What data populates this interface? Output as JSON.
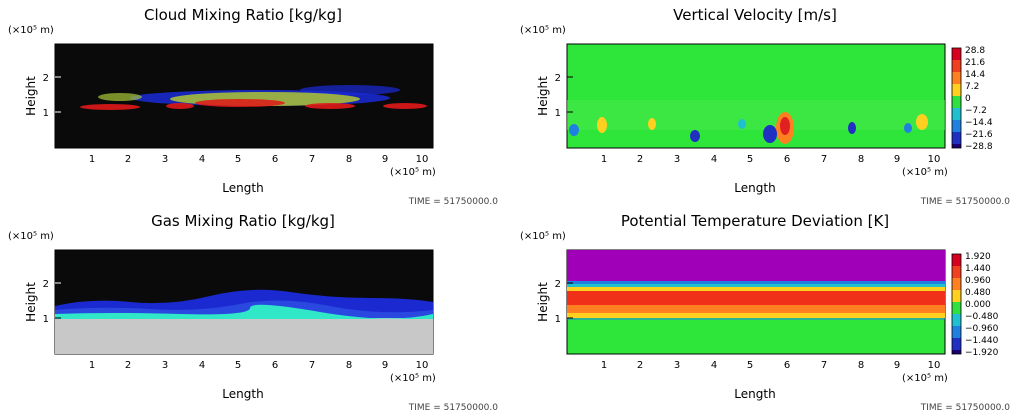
{
  "chart_data": [
    {
      "type": "heatmap",
      "title": "Cloud Mixing Ratio [kg/kg]",
      "xlabel": "Length",
      "ylabel": "Height",
      "x_unit": "(×10⁵ m)",
      "y_unit": "(×10⁵ m)",
      "x_ticks": [
        "1",
        "2",
        "3",
        "4",
        "5",
        "6",
        "7",
        "8",
        "9",
        "10"
      ],
      "y_ticks": [
        "1",
        "2"
      ],
      "xlim": [
        0,
        10.3
      ],
      "ylim": [
        0,
        2.8
      ],
      "time_label": "TIME = 51750000.0",
      "background": "#0a0a0a",
      "features": [
        {
          "name": "lower cloud layer",
          "color": "#e01818",
          "x": [
            0.7,
            10.3
          ],
          "y": [
            1.0,
            1.3
          ]
        },
        {
          "name": "mixed layer",
          "color": "#b8d028",
          "x": [
            1.0,
            9.0
          ],
          "y": [
            1.2,
            1.6
          ]
        },
        {
          "name": "upper layer",
          "color": "#1a2ad8",
          "x": [
            2.8,
            9.8
          ],
          "y": [
            1.5,
            1.95
          ]
        }
      ]
    },
    {
      "type": "heatmap",
      "title": "Vertical Velocity [m/s]",
      "xlabel": "Length",
      "ylabel": "Height",
      "x_unit": "(×10⁵ m)",
      "y_unit": "(×10⁵ m)",
      "x_ticks": [
        "1",
        "2",
        "3",
        "4",
        "5",
        "6",
        "7",
        "8",
        "9",
        "10"
      ],
      "y_ticks": [
        "1",
        "2"
      ],
      "xlim": [
        0,
        10.3
      ],
      "ylim": [
        0,
        2.8
      ],
      "time_label": "TIME = 51750000.0",
      "background": "#2ee63a",
      "colorbar": {
        "labels": [
          "28.8",
          "21.6",
          "14.4",
          "7.2",
          "0",
          "−7.2",
          "−14.4",
          "−21.6",
          "−28.8"
        ],
        "colors": [
          "#d80020",
          "#f04020",
          "#ff8020",
          "#ffd020",
          "#30e040",
          "#20c0d0",
          "#2080e0",
          "#2030c0",
          "#1a0070"
        ]
      },
      "features": [
        {
          "name": "updraft",
          "color": "#ff8020",
          "x": 6.0,
          "y": 0.65
        },
        {
          "name": "downdraft",
          "color": "#2030c0",
          "x": 5.6,
          "y": 0.45
        },
        {
          "name": "downdraft",
          "color": "#2030c0",
          "x": 3.4,
          "y": 0.45
        }
      ]
    },
    {
      "type": "heatmap",
      "title": "Gas Mixing Ratio [kg/kg]",
      "xlabel": "Length",
      "ylabel": "Height",
      "x_unit": "(×10⁵ m)",
      "y_unit": "(×10⁵ m)",
      "x_ticks": [
        "1",
        "2",
        "3",
        "4",
        "5",
        "6",
        "7",
        "8",
        "9",
        "10"
      ],
      "y_ticks": [
        "1",
        "2"
      ],
      "xlim": [
        0,
        10.3
      ],
      "ylim": [
        0,
        2.8
      ],
      "time_label": "TIME = 51750000.0",
      "background": "#0a0a0a",
      "features": [
        {
          "name": "lower region",
          "color": "#c8c8c8",
          "y": [
            0,
            1.1
          ]
        },
        {
          "name": "interface layer",
          "color": "#30e8c8",
          "y": [
            1.0,
            1.25
          ]
        },
        {
          "name": "upper layer",
          "color": "#1a2ad0",
          "y": [
            1.2,
            1.7
          ]
        }
      ]
    },
    {
      "type": "heatmap",
      "title": "Potential Temperature Deviation [K]",
      "xlabel": "Length",
      "ylabel": "Height",
      "x_unit": "(×10⁵ m)",
      "y_unit": "(×10⁵ m)",
      "x_ticks": [
        "1",
        "2",
        "3",
        "4",
        "5",
        "6",
        "7",
        "8",
        "9",
        "10"
      ],
      "y_ticks": [
        "1",
        "2"
      ],
      "xlim": [
        0,
        10.3
      ],
      "ylim": [
        0,
        2.8
      ],
      "time_label": "TIME = 51750000.0",
      "background": "#2ee63a",
      "colorbar": {
        "labels": [
          "1.920",
          "1.440",
          "0.960",
          "0.480",
          "0.000",
          "−0.480",
          "−0.960",
          "−1.440",
          "−1.920"
        ],
        "colors": [
          "#d80020",
          "#f04020",
          "#ff8020",
          "#ffd020",
          "#30e040",
          "#20c0d0",
          "#2080e0",
          "#2030c0",
          "#1a0070"
        ]
      },
      "features": [
        {
          "name": "upper region",
          "color": "#a000b8",
          "y": [
            2.0,
            2.8
          ]
        },
        {
          "name": "warm layer",
          "color": "#f03018",
          "y": [
            1.55,
            1.9
          ]
        },
        {
          "name": "transition",
          "color": "#ffd020",
          "y": [
            1.25,
            1.55
          ]
        },
        {
          "name": "lower region",
          "color": "#2ee63a",
          "y": [
            0,
            1.1
          ]
        }
      ]
    }
  ]
}
